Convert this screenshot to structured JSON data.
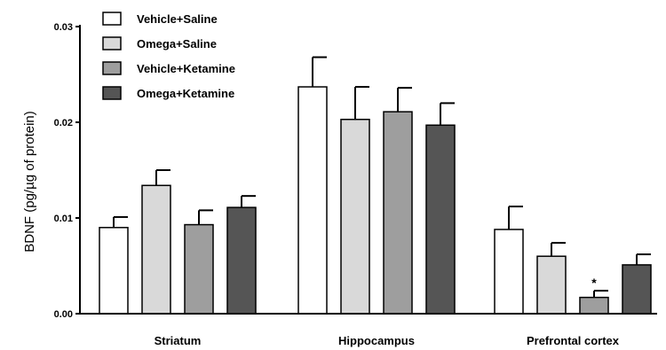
{
  "chart_data": {
    "type": "bar",
    "ylabel": "BDNF (pg/µg of protein)",
    "ylim": [
      0,
      0.03
    ],
    "yticks": [
      0.0,
      0.01,
      0.02,
      0.03
    ],
    "ytick_labels": [
      "0.00",
      "0.01",
      "0.02",
      "0.03"
    ],
    "categories": [
      "Striatum",
      "Hippocampus",
      "Prefrontal cortex"
    ],
    "legend_position": "top-left",
    "grid": false,
    "series": [
      {
        "name": "Vehicle+Saline",
        "color": "#ffffff",
        "values": [
          0.009,
          0.0237,
          0.0088
        ],
        "errors": [
          0.0011,
          0.0031,
          0.0024
        ]
      },
      {
        "name": "Omega+Saline",
        "color": "#d9d9d9",
        "values": [
          0.0134,
          0.0203,
          0.006
        ],
        "errors": [
          0.0016,
          0.0034,
          0.0014
        ]
      },
      {
        "name": "Vehicle+Ketamine",
        "color": "#9e9e9e",
        "values": [
          0.0093,
          0.0211,
          0.0017
        ],
        "errors": [
          0.0015,
          0.0025,
          0.0007
        ]
      },
      {
        "name": "Omega+Ketamine",
        "color": "#555555",
        "values": [
          0.0111,
          0.0197,
          0.0051
        ],
        "errors": [
          0.0012,
          0.0023,
          0.0011
        ]
      }
    ],
    "annotations": [
      {
        "text": "*",
        "series": 2,
        "category": 2
      }
    ]
  }
}
